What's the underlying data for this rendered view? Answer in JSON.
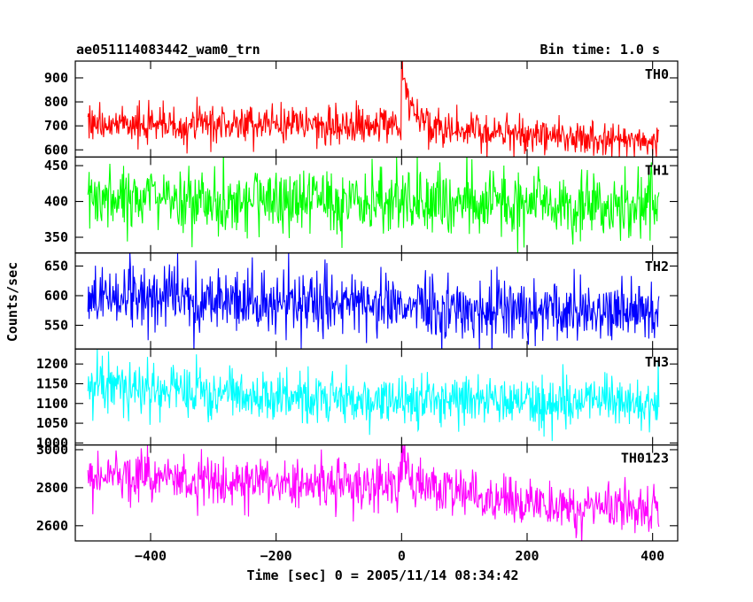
{
  "chart_data": {
    "type": "line",
    "title": "ae051114083442_wam0_trn",
    "bin_time": "Bin time: 1.0 s",
    "xlabel": "Time [sec] 0 = 2005/11/14 08:34:42",
    "ylabel": "Counts/sec",
    "xlim": [
      -520,
      440
    ],
    "x_ticks": [
      -400,
      -200,
      0,
      200,
      400
    ],
    "x_tick_labels": [
      "−400",
      "−200",
      "0",
      "200",
      "400"
    ],
    "x_data_range": [
      -500,
      410
    ],
    "shared_x": true,
    "panels": [
      {
        "name": "TH0",
        "color": "#ff0000",
        "ylim": [
          570,
          970
        ],
        "y_ticks": [
          600,
          700,
          800,
          900
        ],
        "y_tick_labels": [
          "600",
          "700",
          "800",
          "900"
        ],
        "baseline": [
          [
            -500,
            705
          ],
          [
            -100,
            705
          ],
          [
            0,
            700
          ],
          [
            60,
            690
          ],
          [
            200,
            660
          ],
          [
            410,
            635
          ]
        ],
        "noise": 38,
        "bursts": [
          {
            "x": 0,
            "peak": 965,
            "decay": 14
          }
        ]
      },
      {
        "name": "TH1",
        "color": "#00ff00",
        "ylim": [
          328,
          462
        ],
        "y_ticks": [
          350,
          400,
          450
        ],
        "y_tick_labels": [
          "350",
          "400",
          "450"
        ],
        "baseline": [
          [
            -500,
            405
          ],
          [
            0,
            398
          ],
          [
            410,
            393
          ]
        ],
        "noise": 22,
        "bursts": []
      },
      {
        "name": "TH2",
        "color": "#0000ff",
        "ylim": [
          510,
          672
        ],
        "y_ticks": [
          550,
          600,
          650
        ],
        "y_tick_labels": [
          "550",
          "600",
          "650"
        ],
        "baseline": [
          [
            -500,
            600
          ],
          [
            -200,
            590
          ],
          [
            200,
            575
          ],
          [
            410,
            570
          ]
        ],
        "noise": 27,
        "bursts": []
      },
      {
        "name": "TH3",
        "color": "#00ffff",
        "ylim": [
          995,
          1238
        ],
        "y_ticks": [
          1000,
          1050,
          1100,
          1150,
          1200
        ],
        "y_tick_labels": [
          "1000",
          "1050",
          "1100",
          "1150",
          "1200"
        ],
        "baseline": [
          [
            -500,
            1145
          ],
          [
            -200,
            1120
          ],
          [
            0,
            1110
          ],
          [
            410,
            1105
          ]
        ],
        "noise": 33,
        "bursts": []
      },
      {
        "name": "TH0123",
        "color": "#ff00ff",
        "ylim": [
          2520,
          3025
        ],
        "y_ticks": [
          2600,
          2800,
          3000
        ],
        "y_tick_labels": [
          "2600",
          "2800",
          "3000"
        ],
        "baseline": [
          [
            -500,
            2870
          ],
          [
            -200,
            2820
          ],
          [
            0,
            2810
          ],
          [
            40,
            2800
          ],
          [
            200,
            2720
          ],
          [
            410,
            2690
          ]
        ],
        "noise": 65,
        "bursts": [
          {
            "x": 0,
            "peak": 3010,
            "decay": 10
          }
        ]
      }
    ]
  }
}
